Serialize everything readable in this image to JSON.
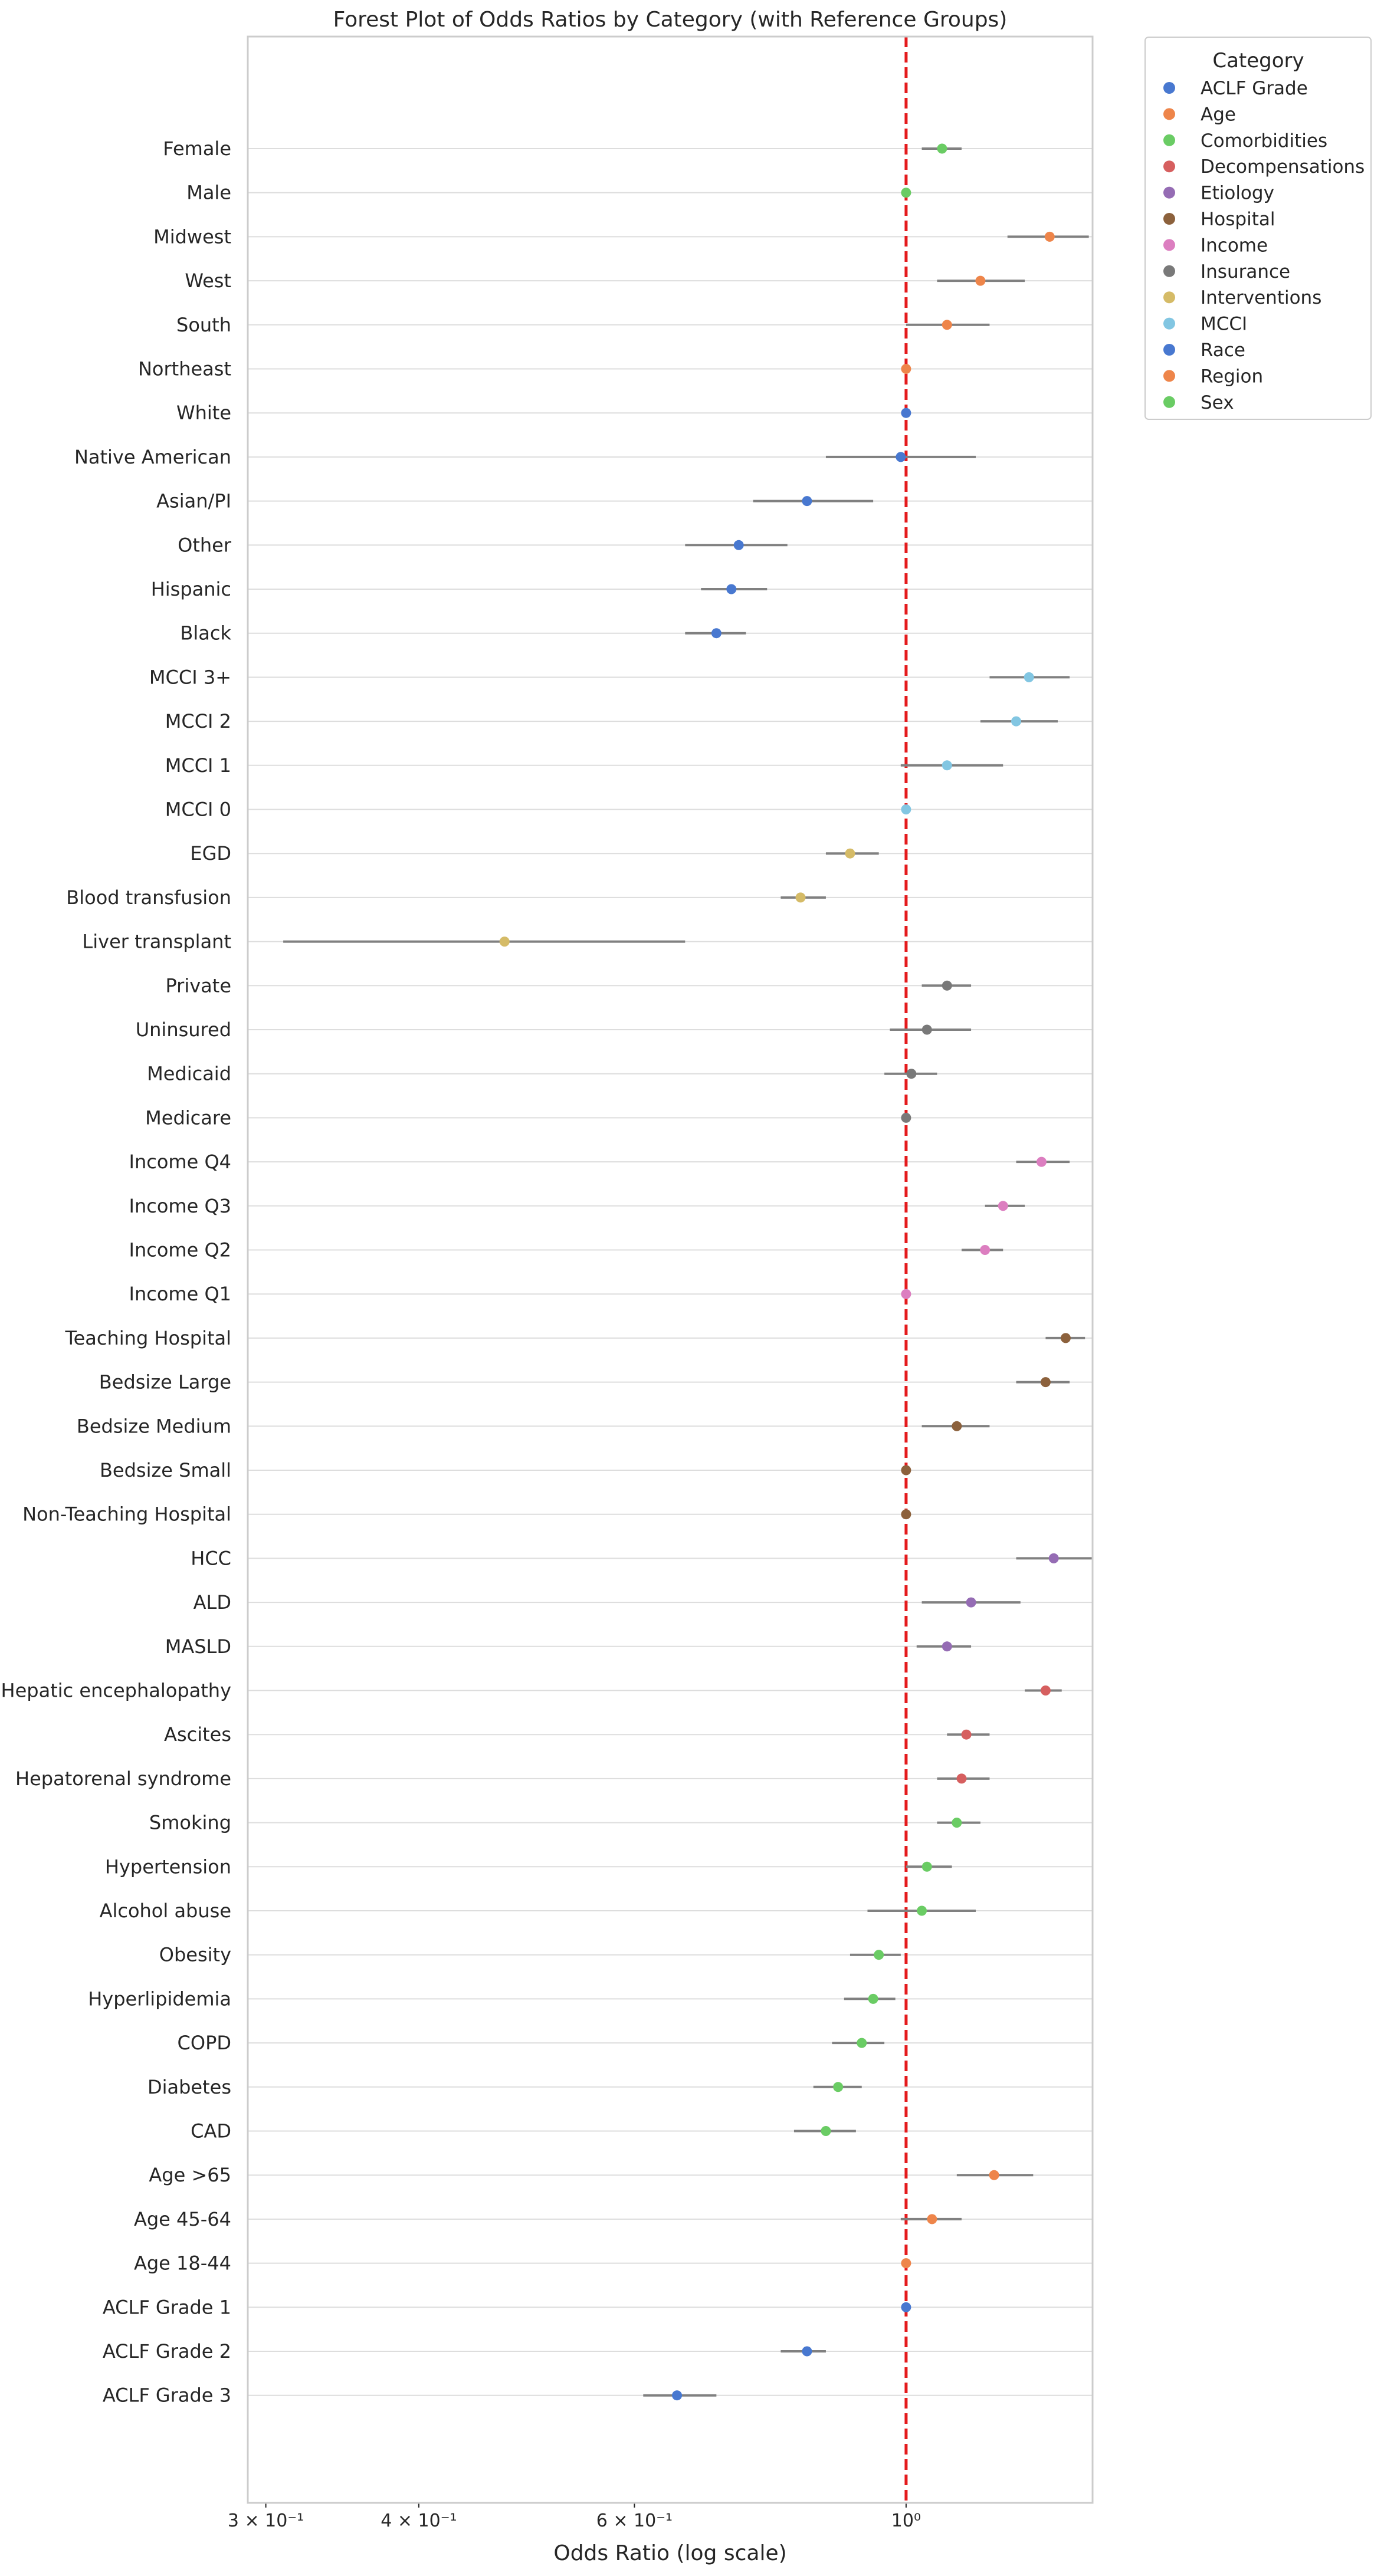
{
  "chart_data": {
    "type": "scatter",
    "title": "Forest Plot of Odds Ratios by Category (with Reference Groups)",
    "xlabel": "Odds Ratio (log scale)",
    "ylabel": "",
    "x_scale": "log",
    "xlim": [
      0.29,
      1.42
    ],
    "x_ticks": [
      {
        "value": 0.3,
        "label": "3 × 10⁻¹"
      },
      {
        "value": 0.4,
        "label": "4 × 10⁻¹"
      },
      {
        "value": 0.6,
        "label": "6 × 10⁻¹"
      },
      {
        "value": 1.0,
        "label": "10⁰"
      }
    ],
    "reference_line": {
      "x": 1.0,
      "color": "#e41a1c",
      "style": "dashed"
    },
    "grid": "horizontal",
    "legend": {
      "title": "Category",
      "placement": "outside-upper-right",
      "entries": [
        {
          "name": "ACLF Grade",
          "color": "#4878d0"
        },
        {
          "name": "Age",
          "color": "#ee854a"
        },
        {
          "name": "Comorbidities",
          "color": "#6acc64"
        },
        {
          "name": "Decompensations",
          "color": "#d65f5f"
        },
        {
          "name": "Etiology",
          "color": "#956cb4"
        },
        {
          "name": "Hospital",
          "color": "#8c613c"
        },
        {
          "name": "Income",
          "color": "#dc7ec0"
        },
        {
          "name": "Insurance",
          "color": "#797979"
        },
        {
          "name": "Interventions",
          "color": "#d5bb67"
        },
        {
          "name": "MCCI",
          "color": "#82c6e2"
        },
        {
          "name": "Race",
          "color": "#4878d0"
        },
        {
          "name": "Region",
          "color": "#ee854a"
        },
        {
          "name": "Sex",
          "color": "#6acc64"
        }
      ]
    },
    "rows": [
      {
        "label": "Female",
        "category": "Sex",
        "or": 1.07,
        "lo": 1.03,
        "hi": 1.11
      },
      {
        "label": "Male",
        "category": "Sex",
        "or": 1.0,
        "lo": 1.0,
        "hi": 1.0
      },
      {
        "label": "Midwest",
        "category": "Region",
        "or": 1.31,
        "lo": 1.21,
        "hi": 1.41
      },
      {
        "label": "West",
        "category": "Region",
        "or": 1.15,
        "lo": 1.06,
        "hi": 1.25
      },
      {
        "label": "South",
        "category": "Region",
        "or": 1.08,
        "lo": 1.0,
        "hi": 1.17
      },
      {
        "label": "Northeast",
        "category": "Region",
        "or": 1.0,
        "lo": 1.0,
        "hi": 1.0
      },
      {
        "label": "White",
        "category": "Race",
        "or": 1.0,
        "lo": 1.0,
        "hi": 1.0
      },
      {
        "label": "Native American",
        "category": "Race",
        "or": 0.99,
        "lo": 0.86,
        "hi": 1.14
      },
      {
        "label": "Asian/PI",
        "category": "Race",
        "or": 0.83,
        "lo": 0.75,
        "hi": 0.94
      },
      {
        "label": "Other",
        "category": "Race",
        "or": 0.73,
        "lo": 0.66,
        "hi": 0.8
      },
      {
        "label": "Hispanic",
        "category": "Race",
        "or": 0.72,
        "lo": 0.68,
        "hi": 0.77
      },
      {
        "label": "Black",
        "category": "Race",
        "or": 0.7,
        "lo": 0.66,
        "hi": 0.74
      },
      {
        "label": "MCCI 3+",
        "category": "MCCI",
        "or": 1.26,
        "lo": 1.17,
        "hi": 1.36
      },
      {
        "label": "MCCI 2",
        "category": "MCCI",
        "or": 1.23,
        "lo": 1.15,
        "hi": 1.33
      },
      {
        "label": "MCCI 1",
        "category": "MCCI",
        "or": 1.08,
        "lo": 0.99,
        "hi": 1.2
      },
      {
        "label": "MCCI 0",
        "category": "MCCI",
        "or": 1.0,
        "lo": 1.0,
        "hi": 1.0
      },
      {
        "label": "EGD",
        "category": "Interventions",
        "or": 0.9,
        "lo": 0.86,
        "hi": 0.95
      },
      {
        "label": "Blood transfusion",
        "category": "Interventions",
        "or": 0.82,
        "lo": 0.79,
        "hi": 0.86
      },
      {
        "label": "Liver transplant",
        "category": "Interventions",
        "or": 0.47,
        "lo": 0.31,
        "hi": 0.66
      },
      {
        "label": "Private",
        "category": "Insurance",
        "or": 1.08,
        "lo": 1.03,
        "hi": 1.13
      },
      {
        "label": "Uninsured",
        "category": "Insurance",
        "or": 1.04,
        "lo": 0.97,
        "hi": 1.13
      },
      {
        "label": "Medicaid",
        "category": "Insurance",
        "or": 1.01,
        "lo": 0.96,
        "hi": 1.06
      },
      {
        "label": "Medicare",
        "category": "Insurance",
        "or": 1.0,
        "lo": 1.0,
        "hi": 1.0
      },
      {
        "label": "Income Q4",
        "category": "Income",
        "or": 1.29,
        "lo": 1.23,
        "hi": 1.36
      },
      {
        "label": "Income Q3",
        "category": "Income",
        "or": 1.2,
        "lo": 1.16,
        "hi": 1.25
      },
      {
        "label": "Income Q2",
        "category": "Income",
        "or": 1.16,
        "lo": 1.11,
        "hi": 1.2
      },
      {
        "label": "Income Q1",
        "category": "Income",
        "or": 1.0,
        "lo": 1.0,
        "hi": 1.0
      },
      {
        "label": "Teaching Hospital",
        "category": "Hospital",
        "or": 1.35,
        "lo": 1.3,
        "hi": 1.4
      },
      {
        "label": "Bedsize Large",
        "category": "Hospital",
        "or": 1.3,
        "lo": 1.23,
        "hi": 1.36
      },
      {
        "label": "Bedsize Medium",
        "category": "Hospital",
        "or": 1.1,
        "lo": 1.03,
        "hi": 1.17
      },
      {
        "label": "Bedsize Small",
        "category": "Hospital",
        "or": 1.0,
        "lo": 1.0,
        "hi": 1.0
      },
      {
        "label": "Non-Teaching Hospital",
        "category": "Hospital",
        "or": 1.0,
        "lo": 1.0,
        "hi": 1.0
      },
      {
        "label": "HCC",
        "category": "Etiology",
        "or": 1.32,
        "lo": 1.23,
        "hi": 1.42
      },
      {
        "label": "ALD",
        "category": "Etiology",
        "or": 1.13,
        "lo": 1.03,
        "hi": 1.24
      },
      {
        "label": "MASLD",
        "category": "Etiology",
        "or": 1.08,
        "lo": 1.02,
        "hi": 1.13
      },
      {
        "label": "Hepatic encephalopathy",
        "category": "Decompensations",
        "or": 1.3,
        "lo": 1.25,
        "hi": 1.34
      },
      {
        "label": "Ascites",
        "category": "Decompensations",
        "or": 1.12,
        "lo": 1.08,
        "hi": 1.17
      },
      {
        "label": "Hepatorenal syndrome",
        "category": "Decompensations",
        "or": 1.11,
        "lo": 1.06,
        "hi": 1.17
      },
      {
        "label": "Smoking",
        "category": "Comorbidities",
        "or": 1.1,
        "lo": 1.06,
        "hi": 1.15
      },
      {
        "label": "Hypertension",
        "category": "Comorbidities",
        "or": 1.04,
        "lo": 1.0,
        "hi": 1.09
      },
      {
        "label": "Alcohol abuse",
        "category": "Comorbidities",
        "or": 1.03,
        "lo": 0.93,
        "hi": 1.14
      },
      {
        "label": "Obesity",
        "category": "Comorbidities",
        "or": 0.95,
        "lo": 0.9,
        "hi": 0.99
      },
      {
        "label": "Hyperlipidemia",
        "category": "Comorbidities",
        "or": 0.94,
        "lo": 0.89,
        "hi": 0.98
      },
      {
        "label": "COPD",
        "category": "Comorbidities",
        "or": 0.92,
        "lo": 0.87,
        "hi": 0.96
      },
      {
        "label": "Diabetes",
        "category": "Comorbidities",
        "or": 0.88,
        "lo": 0.84,
        "hi": 0.92
      },
      {
        "label": "CAD",
        "category": "Comorbidities",
        "or": 0.86,
        "lo": 0.81,
        "hi": 0.91
      },
      {
        "label": "Age >65",
        "category": "Age",
        "or": 1.18,
        "lo": 1.1,
        "hi": 1.27
      },
      {
        "label": "Age 45-64",
        "category": "Age",
        "or": 1.05,
        "lo": 0.99,
        "hi": 1.11
      },
      {
        "label": "Age 18-44",
        "category": "Age",
        "or": 1.0,
        "lo": 1.0,
        "hi": 1.0
      },
      {
        "label": "ACLF Grade 1",
        "category": "ACLF Grade",
        "or": 1.0,
        "lo": 1.0,
        "hi": 1.0
      },
      {
        "label": "ACLF Grade 2",
        "category": "ACLF Grade",
        "or": 0.83,
        "lo": 0.79,
        "hi": 0.86
      },
      {
        "label": "ACLF Grade 3",
        "category": "ACLF Grade",
        "or": 0.65,
        "lo": 0.61,
        "hi": 0.7
      }
    ]
  }
}
